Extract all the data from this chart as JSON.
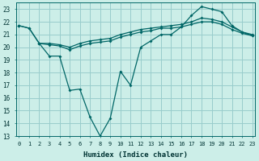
{
  "xlabel": "Humidex (Indice chaleur)",
  "background_color": "#cceee8",
  "grid_color": "#99cccc",
  "line_color": "#006666",
  "x_all": [
    0,
    1,
    2,
    3,
    4,
    5,
    6,
    7,
    8,
    9,
    10,
    11,
    12,
    13,
    14,
    15,
    16,
    17,
    18,
    19,
    20,
    21,
    22,
    23
  ],
  "line_top": [
    21.7,
    21.5,
    20.3,
    20.3,
    20.2,
    20.0,
    20.3,
    20.5,
    20.6,
    20.7,
    21.0,
    21.2,
    21.4,
    21.5,
    21.6,
    21.7,
    21.8,
    22.0,
    22.3,
    22.2,
    22.0,
    21.6,
    21.2,
    21.0
  ],
  "line_mid": [
    21.7,
    null,
    20.3,
    20.2,
    20.1,
    19.8,
    20.1,
    20.3,
    20.4,
    20.5,
    20.8,
    21.0,
    21.2,
    21.3,
    21.5,
    21.5,
    21.6,
    21.8,
    22.0,
    22.0,
    21.8,
    21.4,
    21.1,
    20.9
  ],
  "line_dip": [
    21.7,
    21.5,
    20.3,
    19.3,
    19.3,
    16.6,
    16.7,
    14.5,
    13.0,
    14.4,
    18.1,
    17.0,
    20.0,
    20.5,
    21.0,
    21.0,
    21.6,
    22.5,
    23.2,
    23.0,
    22.8,
    21.7,
    21.2,
    20.9
  ],
  "ylim": [
    13,
    23.5
  ],
  "yticks": [
    13,
    14,
    15,
    16,
    17,
    18,
    19,
    20,
    21,
    22,
    23
  ],
  "xlim": [
    -0.3,
    23.3
  ]
}
